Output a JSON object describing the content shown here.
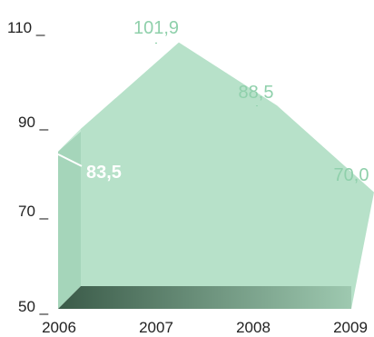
{
  "chart_data": {
    "type": "area",
    "title": "",
    "xlabel": "",
    "ylabel": "",
    "categories": [
      "2006",
      "2007",
      "2008",
      "2009"
    ],
    "series": [
      {
        "values": [
          83.5,
          101.9,
          88.5,
          70.0
        ]
      }
    ],
    "data_labels": [
      "83,5",
      "101,9",
      "88,5",
      "70,0"
    ],
    "y_ticks": [
      "110 _",
      "90 _",
      "70 _",
      "50 _"
    ],
    "ylim": [
      50,
      110
    ],
    "grid": false,
    "legend": "none",
    "colors": {
      "area_front": "#b7e1c9",
      "area_side": "#a5d5ba",
      "area_top": "#c7ead6",
      "label_green": "#8fd0ab",
      "label_white": "#ffffff",
      "base_dark": "#3a5a48",
      "base_light": "#9ec9b0",
      "axis_text": "#222222"
    }
  }
}
